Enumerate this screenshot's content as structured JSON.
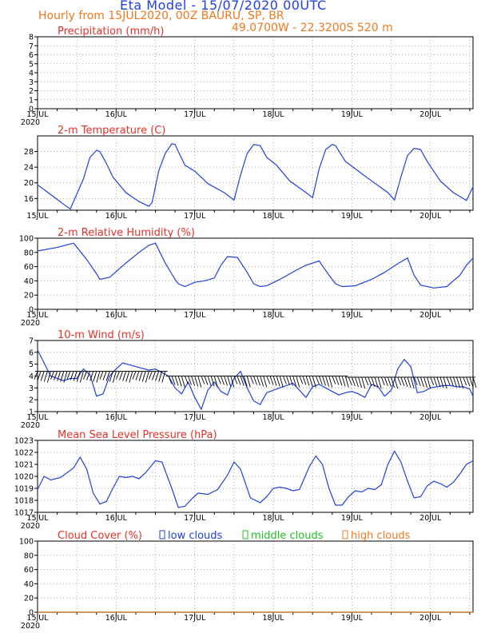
{
  "header": {
    "title": "Eta Model - 15/07/2020 00UTC",
    "subtitle": "Hourly from 15JUL2020, 00Z  BAURU, SP, BR",
    "coords": "49.0700W - 22.3200S     520  m"
  },
  "colors": {
    "title": "#1f3fe0",
    "subtitle": "#f07820",
    "panel_title": "#e8302a",
    "series": "#2040e0",
    "low": "#2040e0",
    "middle": "#20c020",
    "high": "#f07820"
  },
  "x_axis": {
    "start": "2020-07-15T00",
    "end": "2020-07-20T13",
    "tick_labels": [
      "15JUL",
      "16JUL",
      "17JUL",
      "18JUL",
      "19JUL",
      "20JUL"
    ],
    "first_year": "2020"
  },
  "chart_data": [
    {
      "type": "bar",
      "title": "Precipitation (mm/h)",
      "ylim": [
        0,
        8
      ],
      "yticks": [
        "0",
        "1",
        "2",
        "3",
        "4",
        "5",
        "6",
        "7",
        "8"
      ],
      "grid": true,
      "values": []
    },
    {
      "type": "line",
      "title": "2-m Temperature (C)",
      "ylim": [
        13,
        32
      ],
      "yticks": [
        "16",
        "20",
        "24",
        "28"
      ],
      "ytick_values": [
        16,
        20,
        24,
        28
      ],
      "grid": true,
      "x": [
        "2020-07-15T00",
        "2020-07-15T04",
        "2020-07-15T08",
        "2020-07-15T10",
        "2020-07-15T14",
        "2020-07-15T16",
        "2020-07-15T18",
        "2020-07-15T19",
        "2020-07-15T21",
        "2020-07-15T23",
        "2020-07-16T03",
        "2020-07-16T07",
        "2020-07-16T10",
        "2020-07-16T11",
        "2020-07-16T13",
        "2020-07-16T15",
        "2020-07-16T17",
        "2020-07-16T18",
        "2020-07-16T19",
        "2020-07-16T21",
        "2020-07-17T00",
        "2020-07-17T04",
        "2020-07-17T09",
        "2020-07-17T12",
        "2020-07-17T14",
        "2020-07-17T16",
        "2020-07-17T18",
        "2020-07-17T20",
        "2020-07-17T22",
        "2020-07-18T01",
        "2020-07-18T05",
        "2020-07-18T10",
        "2020-07-18T12",
        "2020-07-18T14",
        "2020-07-18T16",
        "2020-07-18T18",
        "2020-07-18T19",
        "2020-07-18T22",
        "2020-07-19T02",
        "2020-07-19T06",
        "2020-07-19T11",
        "2020-07-19T13",
        "2020-07-19T15",
        "2020-07-19T17",
        "2020-07-19T19",
        "2020-07-19T21",
        "2020-07-19T23",
        "2020-07-20T03",
        "2020-07-20T07",
        "2020-07-20T11",
        "2020-07-20T13"
      ],
      "values": [
        19.5,
        17,
        14.5,
        13.3,
        21,
        26.5,
        28.3,
        28,
        25,
        21.5,
        17.5,
        15.2,
        14,
        15,
        23,
        27.5,
        30,
        29.8,
        28,
        24.5,
        23,
        19.8,
        17.5,
        15.6,
        22,
        27.5,
        29.8,
        29.5,
        26.5,
        24.5,
        20.5,
        17.5,
        16.2,
        23.5,
        28.5,
        29.8,
        29.5,
        25.5,
        23,
        20.5,
        17.5,
        15.6,
        21.5,
        27,
        28.8,
        28.5,
        25.5,
        20.5,
        17.5,
        15.5,
        19
      ]
    },
    {
      "type": "line",
      "title": "2-m Relative Humidity (%)",
      "ylim": [
        0,
        100
      ],
      "yticks": [
        "0",
        "20",
        "40",
        "60",
        "80",
        "100"
      ],
      "ytick_values": [
        0,
        20,
        40,
        60,
        80,
        100
      ],
      "grid": true,
      "x": [
        "2020-07-15T00",
        "2020-07-15T06",
        "2020-07-15T11",
        "2020-07-15T15",
        "2020-07-15T18",
        "2020-07-15T19",
        "2020-07-15T22",
        "2020-07-16T03",
        "2020-07-16T07",
        "2020-07-16T10",
        "2020-07-16T12",
        "2020-07-16T15",
        "2020-07-16T18",
        "2020-07-16T19",
        "2020-07-16T21",
        "2020-07-17T00",
        "2020-07-17T03",
        "2020-07-17T06",
        "2020-07-17T08",
        "2020-07-17T10",
        "2020-07-17T13",
        "2020-07-17T16",
        "2020-07-17T18",
        "2020-07-17T20",
        "2020-07-17T22",
        "2020-07-18T02",
        "2020-07-18T07",
        "2020-07-18T10",
        "2020-07-18T14",
        "2020-07-18T17",
        "2020-07-18T19",
        "2020-07-18T21",
        "2020-07-19T01",
        "2020-07-19T06",
        "2020-07-19T10",
        "2020-07-19T14",
        "2020-07-19T17",
        "2020-07-19T19",
        "2020-07-19T21",
        "2020-07-20T01",
        "2020-07-20T05",
        "2020-07-20T09",
        "2020-07-20T11",
        "2020-07-20T13"
      ],
      "values": [
        82,
        87,
        93,
        70,
        50,
        42,
        45,
        65,
        80,
        90,
        93,
        65,
        42,
        36,
        32,
        38,
        40,
        44,
        62,
        74,
        73,
        52,
        36,
        32,
        33,
        42,
        55,
        62,
        68,
        48,
        36,
        32,
        33,
        42,
        52,
        64,
        72,
        48,
        34,
        30,
        32,
        48,
        62,
        72
      ]
    },
    {
      "type": "line",
      "title": "10-m Wind (m/s)",
      "ylim": [
        1,
        7
      ],
      "yticks": [
        "1",
        "2",
        "3",
        "4",
        "5",
        "6",
        "7"
      ],
      "ytick_values": [
        1,
        2,
        3,
        4,
        5,
        6,
        7
      ],
      "grid": true,
      "x": [
        "2020-07-15T00",
        "2020-07-15T04",
        "2020-07-15T08",
        "2020-07-15T10",
        "2020-07-15T12",
        "2020-07-15T14",
        "2020-07-15T16",
        "2020-07-15T18",
        "2020-07-15T20",
        "2020-07-15T22",
        "2020-07-16T00",
        "2020-07-16T02",
        "2020-07-16T06",
        "2020-07-16T10",
        "2020-07-16T12",
        "2020-07-16T14",
        "2020-07-16T16",
        "2020-07-16T18",
        "2020-07-16T20",
        "2020-07-16T22",
        "2020-07-17T00",
        "2020-07-17T02",
        "2020-07-17T04",
        "2020-07-17T06",
        "2020-07-17T08",
        "2020-07-17T10",
        "2020-07-17T12",
        "2020-07-17T14",
        "2020-07-17T16",
        "2020-07-17T18",
        "2020-07-17T20",
        "2020-07-17T22",
        "2020-07-18T00",
        "2020-07-18T02",
        "2020-07-18T04",
        "2020-07-18T06",
        "2020-07-18T08",
        "2020-07-18T10",
        "2020-07-18T12",
        "2020-07-18T14",
        "2020-07-18T16",
        "2020-07-18T18",
        "2020-07-18T20",
        "2020-07-18T22",
        "2020-07-19T00",
        "2020-07-19T02",
        "2020-07-19T04",
        "2020-07-19T06",
        "2020-07-19T08",
        "2020-07-19T10",
        "2020-07-19T12",
        "2020-07-19T14",
        "2020-07-19T16",
        "2020-07-19T18",
        "2020-07-19T20",
        "2020-07-19T22",
        "2020-07-20T00",
        "2020-07-20T02",
        "2020-07-20T04",
        "2020-07-20T06",
        "2020-07-20T08",
        "2020-07-20T10",
        "2020-07-20T12",
        "2020-07-20T13"
      ],
      "values": [
        6.2,
        4.0,
        3.6,
        3.8,
        3.8,
        4.6,
        4.1,
        2.3,
        2.5,
        4.0,
        4.6,
        5.1,
        4.8,
        4.5,
        4.6,
        4.3,
        4.0,
        3.0,
        2.5,
        3.5,
        2.2,
        1.2,
        2.8,
        3.5,
        2.7,
        2.4,
        3.8,
        4.4,
        3.0,
        1.9,
        1.6,
        2.6,
        2.8,
        3.0,
        3.2,
        3.4,
        2.8,
        2.2,
        3.1,
        3.3,
        3.0,
        2.7,
        2.4,
        2.6,
        2.7,
        2.5,
        2.2,
        3.3,
        3.1,
        2.3,
        2.8,
        4.6,
        5.4,
        4.8,
        2.6,
        2.7,
        3.0,
        3.1,
        3.2,
        3.2,
        3.1,
        3.1,
        2.9,
        2.3
      ]
    },
    {
      "type": "line",
      "title": "Mean Sea Level Pressure (hPa)",
      "ylim": [
        1017,
        1023
      ],
      "yticks": [
        "1017",
        "1018",
        "1019",
        "1020",
        "1021",
        "1022",
        "1023"
      ],
      "ytick_values": [
        1017,
        1018,
        1019,
        1020,
        1021,
        1022,
        1023
      ],
      "grid": true,
      "x": [
        "2020-07-15T00",
        "2020-07-15T02",
        "2020-07-15T04",
        "2020-07-15T07",
        "2020-07-15T11",
        "2020-07-15T13",
        "2020-07-15T15",
        "2020-07-15T17",
        "2020-07-15T19",
        "2020-07-15T21",
        "2020-07-15T23",
        "2020-07-16T01",
        "2020-07-16T03",
        "2020-07-16T05",
        "2020-07-16T07",
        "2020-07-16T09",
        "2020-07-16T12",
        "2020-07-16T14",
        "2020-07-16T17",
        "2020-07-16T19",
        "2020-07-16T21",
        "2020-07-16T23",
        "2020-07-17T01",
        "2020-07-17T04",
        "2020-07-17T07",
        "2020-07-17T10",
        "2020-07-17T12",
        "2020-07-17T14",
        "2020-07-17T17",
        "2020-07-17T20",
        "2020-07-17T22",
        "2020-07-18T00",
        "2020-07-18T02",
        "2020-07-18T04",
        "2020-07-18T06",
        "2020-07-18T08",
        "2020-07-18T11",
        "2020-07-18T13",
        "2020-07-18T15",
        "2020-07-18T17",
        "2020-07-18T19",
        "2020-07-18T21",
        "2020-07-18T23",
        "2020-07-19T01",
        "2020-07-19T03",
        "2020-07-19T05",
        "2020-07-19T07",
        "2020-07-19T09",
        "2020-07-19T11",
        "2020-07-19T13",
        "2020-07-19T15",
        "2020-07-19T17",
        "2020-07-19T19",
        "2020-07-19T21",
        "2020-07-19T23",
        "2020-07-20T01",
        "2020-07-20T03",
        "2020-07-20T05",
        "2020-07-20T07",
        "2020-07-20T09",
        "2020-07-20T11",
        "2020-07-20T13"
      ],
      "values": [
        1018.9,
        1020,
        1019.7,
        1019.9,
        1020.7,
        1021.6,
        1020.6,
        1018.6,
        1017.7,
        1017.9,
        1019,
        1020,
        1019.9,
        1020,
        1019.8,
        1020.3,
        1021.3,
        1021.2,
        1019,
        1017.4,
        1017.5,
        1018.1,
        1018.6,
        1018.5,
        1018.9,
        1020.1,
        1021.2,
        1020.6,
        1018.2,
        1017.8,
        1018.3,
        1019,
        1019.1,
        1019,
        1018.8,
        1018.9,
        1020.8,
        1021.7,
        1021,
        1019,
        1017.6,
        1017.6,
        1018.3,
        1018.8,
        1018.7,
        1019,
        1018.9,
        1019.3,
        1021,
        1022.1,
        1021.2,
        1019.6,
        1018.2,
        1018.3,
        1019.2,
        1019.6,
        1019.4,
        1019.1,
        1019.5,
        1020.2,
        1021,
        1021.3
      ]
    },
    {
      "type": "line",
      "title": "Cloud Cover (%)",
      "ylim": [
        0,
        100
      ],
      "yticks": [
        "0",
        "20",
        "40",
        "60",
        "80",
        "100"
      ],
      "ytick_values": [
        0,
        20,
        40,
        60,
        80,
        100
      ],
      "grid": true,
      "legend_placement": "top",
      "series": [
        {
          "name": "low clouds",
          "color": "#2040e0",
          "values": [
            0,
            0
          ]
        },
        {
          "name": "middle clouds",
          "color": "#20c020",
          "values": [
            0,
            0
          ]
        },
        {
          "name": "high clouds",
          "color": "#f07820",
          "values": [
            0,
            0
          ]
        }
      ]
    }
  ]
}
